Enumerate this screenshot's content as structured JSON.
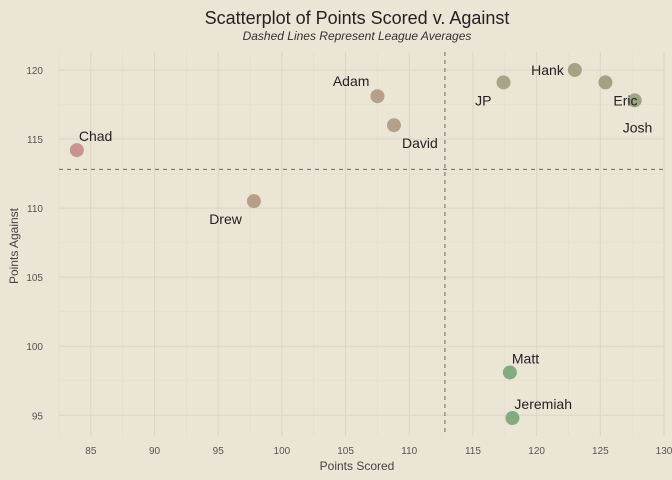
{
  "chart_data": {
    "type": "scatter",
    "title": "Scatterplot of Points Scored v. Against",
    "subtitle": "Dashed Lines Represent League Averages",
    "xlabel": "Points Scored",
    "ylabel": "Points Against",
    "xlim": [
      82.5,
      130
    ],
    "ylim": [
      93.5,
      121.3
    ],
    "xticks": [
      85,
      90,
      95,
      100,
      105,
      110,
      115,
      120,
      125,
      130
    ],
    "yticks": [
      95,
      100,
      105,
      110,
      115,
      120
    ],
    "grid": true,
    "averages": {
      "x": 112.8,
      "y": 112.8
    },
    "points": [
      {
        "name": "Chad",
        "x": 83.9,
        "y": 114.2,
        "color": "#c99294",
        "label_pos": "above-right"
      },
      {
        "name": "Drew",
        "x": 97.8,
        "y": 110.5,
        "color": "#b7a088",
        "label_pos": "below-left"
      },
      {
        "name": "Adam",
        "x": 107.5,
        "y": 118.1,
        "color": "#b5a08a",
        "label_pos": "above-left"
      },
      {
        "name": "David",
        "x": 108.8,
        "y": 116.0,
        "color": "#b3a18a",
        "label_pos": "below-right"
      },
      {
        "name": "JP",
        "x": 117.4,
        "y": 119.1,
        "color": "#a9a487",
        "label_pos": "below-left"
      },
      {
        "name": "Hank",
        "x": 123.0,
        "y": 120.0,
        "color": "#a3a385",
        "label_pos": "left"
      },
      {
        "name": "Eric",
        "x": 125.4,
        "y": 119.1,
        "color": "#9fa384",
        "label_pos": "below-right"
      },
      {
        "name": "Josh",
        "x": 127.7,
        "y": 117.8,
        "color": "#9da583",
        "label_pos": "below"
      },
      {
        "name": "Matt",
        "x": 117.9,
        "y": 98.1,
        "color": "#84aa80",
        "label_pos": "above-right"
      },
      {
        "name": "Jeremiah",
        "x": 118.1,
        "y": 94.8,
        "color": "#83ab80",
        "label_pos": "above-right"
      }
    ]
  }
}
